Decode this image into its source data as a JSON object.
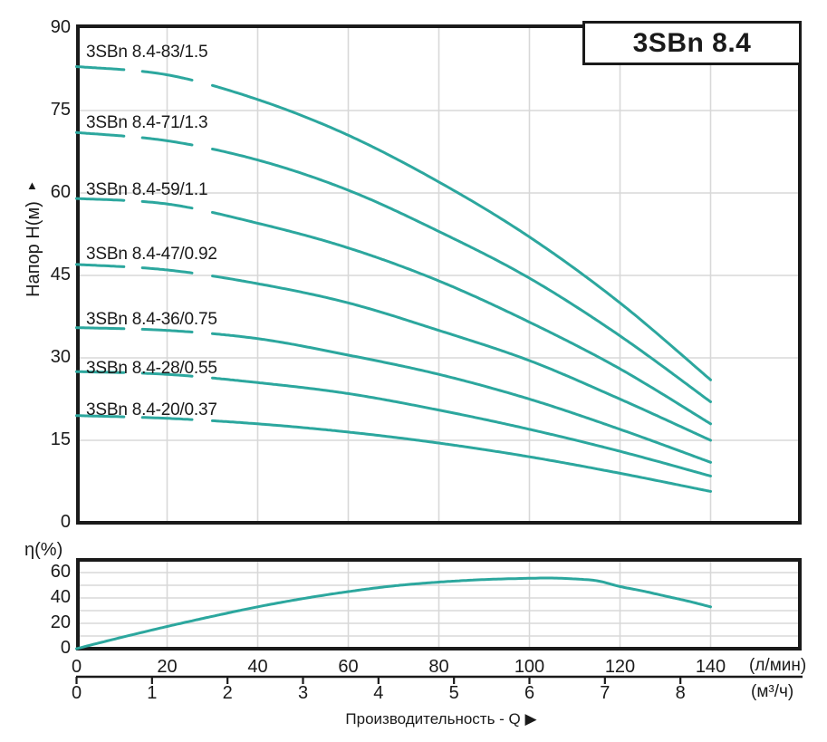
{
  "figure_title": "3SBn 8.4",
  "icons": {
    "y_axis_up_arrow": "▲"
  },
  "chart_data": {
    "type": "line",
    "title": "3SBn 8.4",
    "legend_position": "none",
    "head_chart": {
      "ylabel": "Напор H(м)",
      "ylim": [
        0,
        90
      ],
      "yticks": [
        0,
        15,
        30,
        45,
        60,
        75,
        90
      ],
      "xlim_lmin": [
        0,
        160
      ],
      "grid": true,
      "x_lmin": [
        0,
        20,
        40,
        60,
        80,
        100,
        120,
        140
      ],
      "series": [
        {
          "name": "3SBn 8.4-83/1.5",
          "values": [
            83,
            81.5,
            77,
            70.5,
            62,
            52,
            40,
            26
          ]
        },
        {
          "name": "3SBn 8.4-71/1.3",
          "values": [
            71,
            69.5,
            66,
            60.5,
            53,
            44.5,
            34,
            22
          ]
        },
        {
          "name": "3SBn 8.4-59/1.1",
          "values": [
            59,
            58,
            54.5,
            50,
            44,
            36.5,
            28,
            18
          ]
        },
        {
          "name": "3SBn 8.4-47/0.92",
          "values": [
            47,
            46,
            43.5,
            40,
            35,
            29.5,
            22.5,
            15
          ]
        },
        {
          "name": "3SBn 8.4-36/0.75",
          "values": [
            35.5,
            35,
            33.5,
            30.5,
            27,
            22.5,
            17,
            11
          ]
        },
        {
          "name": "3SBn 8.4-28/0.55",
          "values": [
            27.5,
            27,
            25.5,
            23.5,
            20.5,
            17,
            13,
            8.5
          ]
        },
        {
          "name": "3SBn 8.4-20/0.37",
          "values": [
            19.5,
            19,
            18,
            16.5,
            14.5,
            12,
            9,
            5.7
          ]
        }
      ]
    },
    "efficiency_chart": {
      "ylabel": "η(%)",
      "ylim": [
        0,
        70
      ],
      "yticks": [
        0,
        20,
        40,
        60
      ],
      "grid": true,
      "points": [
        [
          0,
          0
        ],
        [
          10,
          9
        ],
        [
          20,
          17.5
        ],
        [
          30,
          25.5
        ],
        [
          40,
          33
        ],
        [
          50,
          39.5
        ],
        [
          60,
          45
        ],
        [
          70,
          49.5
        ],
        [
          80,
          52.5
        ],
        [
          90,
          54.5
        ],
        [
          100,
          55.5
        ],
        [
          105,
          55.7
        ],
        [
          110,
          55
        ],
        [
          115,
          53.5
        ],
        [
          120,
          49
        ],
        [
          125,
          45.5
        ],
        [
          130,
          41.5
        ],
        [
          135,
          37.5
        ],
        [
          140,
          33
        ]
      ]
    },
    "x_axis": {
      "xlabel": "Производительность - Q ▶",
      "lmin_ticks": [
        0,
        20,
        40,
        60,
        80,
        100,
        120,
        140
      ],
      "lmin_unit": "(л/мин)",
      "m3h_ticks": [
        0,
        1,
        2,
        3,
        4,
        5,
        6,
        7,
        8
      ],
      "m3h_unit": "(м³/ч)"
    },
    "colors": {
      "curve": "#2ca79e",
      "grid": "#d8d8d8",
      "frame": "#1a1a1a",
      "text": "#1a1a1a"
    }
  }
}
